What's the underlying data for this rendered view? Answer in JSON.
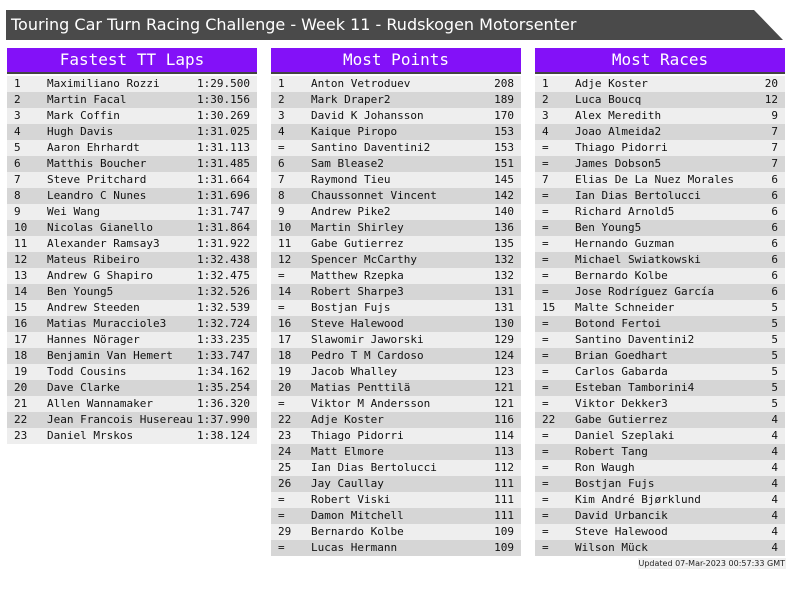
{
  "title": "Touring Car Turn Racing Challenge - Week 11 - Rudskogen Motorsenter",
  "colors": {
    "header": "#8311f8",
    "banner": "#4a4a4a",
    "row_light": "#eeeeee",
    "row_dark": "#d6d6d6"
  },
  "tables": [
    {
      "title": "Fastest TT Laps",
      "rows": [
        [
          "1",
          "Maximiliano Rozzi",
          "1:29.500"
        ],
        [
          "2",
          "Martin Facal",
          "1:30.156"
        ],
        [
          "3",
          "Mark Coffin",
          "1:30.269"
        ],
        [
          "4",
          "Hugh Davis",
          "1:31.025"
        ],
        [
          "5",
          "Aaron Ehrhardt",
          "1:31.113"
        ],
        [
          "6",
          "Matthis Boucher",
          "1:31.485"
        ],
        [
          "7",
          "Steve Pritchard",
          "1:31.664"
        ],
        [
          "8",
          "Leandro C Nunes",
          "1:31.696"
        ],
        [
          "9",
          "Wei Wang",
          "1:31.747"
        ],
        [
          "10",
          "Nicolas Gianello",
          "1:31.864"
        ],
        [
          "11",
          "Alexander Ramsay3",
          "1:31.922"
        ],
        [
          "12",
          "Mateus Ribeiro",
          "1:32.438"
        ],
        [
          "13",
          "Andrew G Shapiro",
          "1:32.475"
        ],
        [
          "14",
          "Ben Young5",
          "1:32.526"
        ],
        [
          "15",
          "Andrew Steeden",
          "1:32.539"
        ],
        [
          "16",
          "Matias Muracciole3",
          "1:32.724"
        ],
        [
          "17",
          "Hannes Nörager",
          "1:33.235"
        ],
        [
          "18",
          "Benjamin Van Hemert",
          "1:33.747"
        ],
        [
          "19",
          "Todd Cousins",
          "1:34.162"
        ],
        [
          "20",
          "Dave Clarke",
          "1:35.254"
        ],
        [
          "21",
          "Allen Wannamaker",
          "1:36.320"
        ],
        [
          "22",
          "Jean Francois Husereau",
          "1:37.990"
        ],
        [
          "23",
          "Daniel Mrskos",
          "1:38.124"
        ]
      ]
    },
    {
      "title": "Most Points",
      "rows": [
        [
          "1",
          "Anton Vetroduev",
          "208"
        ],
        [
          "2",
          "Mark Draper2",
          "189"
        ],
        [
          "3",
          "David K Johansson",
          "170"
        ],
        [
          "4",
          "Kaique Piropo",
          "153"
        ],
        [
          "=",
          "Santino Daventini2",
          "153"
        ],
        [
          "6",
          "Sam Blease2",
          "151"
        ],
        [
          "7",
          "Raymond Tieu",
          "145"
        ],
        [
          "8",
          "Chaussonnet Vincent",
          "142"
        ],
        [
          "9",
          "Andrew Pike2",
          "140"
        ],
        [
          "10",
          "Martin Shirley",
          "136"
        ],
        [
          "11",
          "Gabe Gutierrez",
          "135"
        ],
        [
          "12",
          "Spencer McCarthy",
          "132"
        ],
        [
          "=",
          "Matthew Rzepka",
          "132"
        ],
        [
          "14",
          "Robert Sharpe3",
          "131"
        ],
        [
          "=",
          "Bostjan Fujs",
          "131"
        ],
        [
          "16",
          "Steve Halewood",
          "130"
        ],
        [
          "17",
          "Slawomir Jaworski",
          "129"
        ],
        [
          "18",
          "Pedro T M Cardoso",
          "124"
        ],
        [
          "19",
          "Jacob Whalley",
          "123"
        ],
        [
          "20",
          "Matias Penttilä",
          "121"
        ],
        [
          "=",
          "Viktor M Andersson",
          "121"
        ],
        [
          "22",
          "Adje Koster",
          "116"
        ],
        [
          "23",
          "Thiago Pidorri",
          "114"
        ],
        [
          "24",
          "Matt Elmore",
          "113"
        ],
        [
          "25",
          "Ian Dias Bertolucci",
          "112"
        ],
        [
          "26",
          "Jay Caullay",
          "111"
        ],
        [
          "=",
          "Robert Viski",
          "111"
        ],
        [
          "=",
          "Damon Mitchell",
          "111"
        ],
        [
          "29",
          "Bernardo Kolbe",
          "109"
        ],
        [
          "=",
          "Lucas Hermann",
          "109"
        ]
      ]
    },
    {
      "title": "Most Races",
      "rows": [
        [
          "1",
          "Adje Koster",
          "20"
        ],
        [
          "2",
          "Luca Boucq",
          "12"
        ],
        [
          "3",
          "Alex Meredith",
          "9"
        ],
        [
          "4",
          "Joao Almeida2",
          "7"
        ],
        [
          "=",
          "Thiago Pidorri",
          "7"
        ],
        [
          "=",
          "James Dobson5",
          "7"
        ],
        [
          "7",
          "Elias De La Nuez Morales",
          "6"
        ],
        [
          "=",
          "Ian Dias Bertolucci",
          "6"
        ],
        [
          "=",
          "Richard Arnold5",
          "6"
        ],
        [
          "=",
          "Ben Young5",
          "6"
        ],
        [
          "=",
          "Hernando Guzman",
          "6"
        ],
        [
          "=",
          "Michael Swiatkowski",
          "6"
        ],
        [
          "=",
          "Bernardo Kolbe",
          "6"
        ],
        [
          "=",
          "Jose Rodríguez García",
          "6"
        ],
        [
          "15",
          "Malte Schneider",
          "5"
        ],
        [
          "=",
          "Botond Fertoi",
          "5"
        ],
        [
          "=",
          "Santino Daventini2",
          "5"
        ],
        [
          "=",
          "Brian Goedhart",
          "5"
        ],
        [
          "=",
          "Carlos Gabarda",
          "5"
        ],
        [
          "=",
          "Esteban Tamborini4",
          "5"
        ],
        [
          "=",
          "Viktor Dekker3",
          "5"
        ],
        [
          "22",
          "Gabe Gutierrez",
          "4"
        ],
        [
          "=",
          "Daniel Szeplaki",
          "4"
        ],
        [
          "=",
          "Robert Tang",
          "4"
        ],
        [
          "=",
          "Ron Waugh",
          "4"
        ],
        [
          "=",
          "Bostjan Fujs",
          "4"
        ],
        [
          "=",
          "Kim André Bjørklund",
          "4"
        ],
        [
          "=",
          "David Urbancik",
          "4"
        ],
        [
          "=",
          "Steve Halewood",
          "4"
        ],
        [
          "=",
          "Wilson Mück",
          "4"
        ]
      ]
    }
  ],
  "updated": "Updated 07-Mar-2023 00:57:33 GMT"
}
